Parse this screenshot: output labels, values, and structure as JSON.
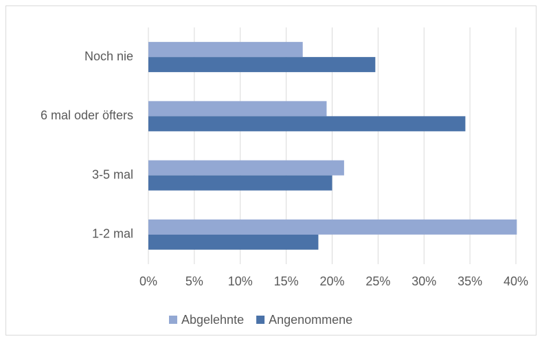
{
  "chart_data": {
    "type": "hbar",
    "categories": [
      "Noch nie",
      "6 mal oder öfters",
      "3-5 mal",
      "1-2 mal"
    ],
    "series": [
      {
        "name": "Abgelehnte",
        "color": "#93a8d3",
        "values": [
          16.8,
          19.4,
          21.3,
          40.1
        ]
      },
      {
        "name": "Angenommene",
        "color": "#4a72a8",
        "values": [
          24.7,
          34.5,
          20.0,
          18.5
        ]
      }
    ],
    "xlim": [
      0,
      40
    ],
    "xticks": [
      {
        "value": 0,
        "label": "0%"
      },
      {
        "value": 5,
        "label": "5%"
      },
      {
        "value": 10,
        "label": "10%"
      },
      {
        "value": 15,
        "label": "15%"
      },
      {
        "value": 20,
        "label": "20%"
      },
      {
        "value": 25,
        "label": "25%"
      },
      {
        "value": 30,
        "label": "30%"
      },
      {
        "value": 35,
        "label": "35%"
      },
      {
        "value": 40,
        "label": "40%"
      }
    ],
    "grid": true,
    "legend": "bottom"
  }
}
